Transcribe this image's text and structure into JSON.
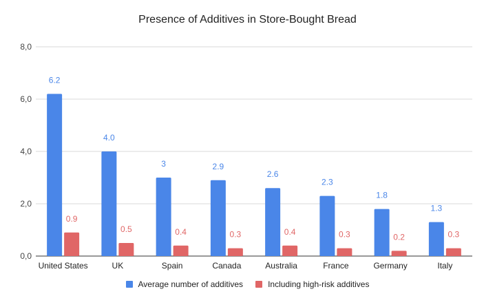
{
  "chart_data": {
    "type": "bar",
    "title": "Presence of Additives in Store-Bought Bread",
    "xlabel": "",
    "ylabel": "",
    "categories": [
      "United States",
      "UK",
      "Spain",
      "Canada",
      "Australia",
      "France",
      "Germany",
      "Italy"
    ],
    "series": [
      {
        "name": "Average number of additives",
        "color": "#4a86e8",
        "values": [
          6.2,
          4.0,
          3,
          2.9,
          2.6,
          2.3,
          1.8,
          1.3
        ],
        "labels": [
          "6.2",
          "4.0",
          "3",
          "2.9",
          "2.6",
          "2.3",
          "1.8",
          "1.3"
        ]
      },
      {
        "name": "Including high-risk additives",
        "color": "#e06666",
        "values": [
          0.9,
          0.5,
          0.4,
          0.3,
          0.4,
          0.3,
          0.2,
          0.3
        ],
        "labels": [
          "0.9",
          "0.5",
          "0.4",
          "0.3",
          "0.4",
          "0.3",
          "0.2",
          "0.3"
        ]
      }
    ],
    "ylim": [
      0,
      8
    ],
    "yticks": [
      0,
      2,
      4,
      6,
      8
    ],
    "ytick_labels": [
      "0,0",
      "2,0",
      "4,0",
      "6,0",
      "8,0"
    ],
    "grid": true,
    "legend_position": "bottom"
  }
}
